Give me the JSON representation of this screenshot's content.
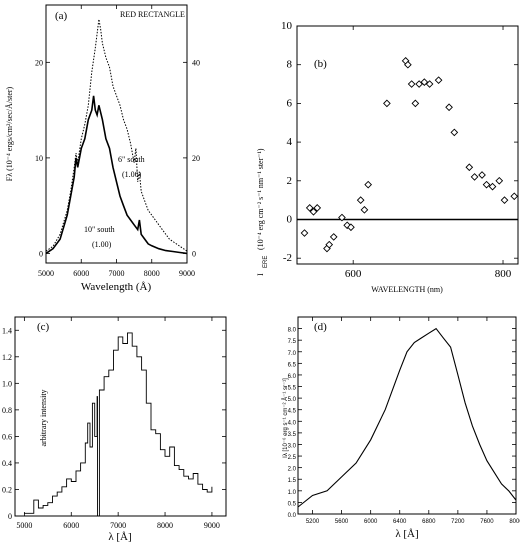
{
  "chart_data": [
    {
      "type": "line",
      "panel_label": "(a)",
      "title": "RED RECTANGLE",
      "xlabel": "Wavelength (Å)",
      "ylabel": "Fλ (10⁻⁴ ergs/cm²/sec/Å/ster)",
      "xlim": [
        5000,
        9000
      ],
      "ylim": [
        -1,
        26
      ],
      "y2lim": [
        -2,
        52
      ],
      "x_ticks": [
        "5000",
        "6000",
        "7000",
        "8000",
        "9000"
      ],
      "y_ticks": [
        "0",
        "10",
        "20"
      ],
      "y2_ticks": [
        "0",
        "20",
        "40"
      ],
      "annotations": [
        "6\" south",
        "(1.06)",
        "10\" south",
        "(1.00)"
      ],
      "series": [
        {
          "axis": "right",
          "style": "dotted",
          "x": [
            5000,
            5200,
            5400,
            5600,
            5700,
            5800,
            5850,
            5900,
            6000,
            6100,
            6200,
            6300,
            6400,
            6450,
            6500,
            6550,
            6600,
            6700,
            6800,
            6900,
            7000,
            7100,
            7200,
            7300,
            7400,
            7500,
            7550,
            7600,
            7650,
            7700,
            7800,
            7900,
            8000,
            8100,
            8200,
            8300,
            8400,
            8500,
            8600,
            8700,
            8800,
            8900,
            9000
          ],
          "y": [
            0.5,
            1.5,
            4,
            9,
            13,
            18,
            21,
            19,
            24,
            27,
            31,
            38,
            43,
            46,
            49,
            47,
            44,
            41,
            39,
            35,
            33,
            31,
            28,
            26,
            23,
            19,
            22,
            15,
            17,
            13,
            11,
            9,
            8,
            7,
            6,
            5,
            4,
            3,
            2.5,
            2,
            1.5,
            1,
            0.5
          ]
        },
        {
          "axis": "left",
          "style": "solid",
          "x": [
            5000,
            5200,
            5400,
            5600,
            5700,
            5800,
            5850,
            5900,
            6000,
            6100,
            6200,
            6300,
            6350,
            6400,
            6450,
            6500,
            6600,
            6700,
            6800,
            6900,
            7000,
            7100,
            7200,
            7300,
            7400,
            7500,
            7600,
            7650,
            7700,
            7800,
            7900,
            8000,
            8200,
            8400,
            8600,
            8800,
            9000
          ],
          "y": [
            0,
            0.5,
            1.5,
            4,
            6,
            8,
            10,
            9,
            11,
            12,
            14,
            15,
            16.5,
            15,
            14.5,
            15.5,
            14,
            12,
            11,
            9,
            7.5,
            6,
            5,
            4,
            3.5,
            3,
            2.5,
            3.5,
            2,
            1.5,
            1,
            0.8,
            0.5,
            0.3,
            0.2,
            0.1,
            0
          ]
        }
      ]
    },
    {
      "type": "scatter",
      "panel_label": "(b)",
      "xlabel": "WAVELENGTH (nm)",
      "ylabel": "I_ERE (10⁻⁴ erg cm⁻² s⁻¹ nm⁻¹ ster⁻¹)",
      "ylabel_parts": {
        "main": "I",
        "sub": "ERE",
        "units": "(10⁻⁴ erg cm⁻² s⁻¹ nm⁻¹ ster⁻¹)"
      },
      "xlim": [
        525,
        820
      ],
      "ylim": [
        -2.3,
        10
      ],
      "x_ticks": [
        "600",
        "800"
      ],
      "x_tick_values": [
        600,
        800
      ],
      "y_ticks": [
        "-2",
        "0",
        "2",
        "4",
        "6",
        "8",
        "10"
      ],
      "y_tick_values": [
        -2,
        0,
        2,
        4,
        6,
        8,
        10
      ],
      "zero_line": true,
      "x": [
        535,
        542,
        547,
        552,
        565,
        568,
        574,
        585,
        592,
        597,
        610,
        615,
        620,
        645,
        670,
        673,
        678,
        683,
        688,
        695,
        702,
        714,
        728,
        735,
        755,
        762,
        772,
        778,
        786,
        795,
        802,
        815
      ],
      "y": [
        -0.7,
        0.6,
        0.4,
        0.6,
        -1.5,
        -1.3,
        -0.9,
        0.1,
        -0.3,
        -0.4,
        1.0,
        0.5,
        1.8,
        6.0,
        8.2,
        8.0,
        7.0,
        6.0,
        7.0,
        7.1,
        7.0,
        7.2,
        5.8,
        4.5,
        2.7,
        2.2,
        2.3,
        1.8,
        1.7,
        2.0,
        1.0,
        1.2
      ]
    },
    {
      "type": "line",
      "panel_label": "(c)",
      "xlabel": "λ [Å]",
      "ylabel": "arbitrary intensity",
      "xlim": [
        4800,
        9300
      ],
      "ylim": [
        0,
        1.5
      ],
      "x_ticks": [
        "5000",
        "6000",
        "7000",
        "8000",
        "9000"
      ],
      "y_ticks": [
        "0",
        "0.2",
        "0.4",
        "0.6",
        "0.8",
        "1.0",
        "1.2",
        "1.4"
      ],
      "x": [
        5000,
        5200,
        5300,
        5400,
        5500,
        5600,
        5700,
        5800,
        5900,
        6000,
        6100,
        6200,
        6300,
        6350,
        6400,
        6450,
        6500,
        6550,
        6560,
        6600,
        6700,
        6800,
        6900,
        7000,
        7100,
        7200,
        7300,
        7400,
        7500,
        7600,
        7700,
        7800,
        7900,
        8000,
        8100,
        8200,
        8300,
        8400,
        8500,
        8600,
        8700,
        8800,
        8900,
        9000
      ],
      "y": [
        0.02,
        0.12,
        0.06,
        0.08,
        0.1,
        0.15,
        0.18,
        0.22,
        0.28,
        0.26,
        0.34,
        0.4,
        0.55,
        0.7,
        0.52,
        0.85,
        0.6,
        0.9,
        0.0,
        0.95,
        1.05,
        1.1,
        1.25,
        1.35,
        1.3,
        1.38,
        1.28,
        1.2,
        1.1,
        0.85,
        0.65,
        0.62,
        0.5,
        0.45,
        0.52,
        0.38,
        0.35,
        0.3,
        0.28,
        0.32,
        0.24,
        0.2,
        0.18,
        0.22
      ]
    },
    {
      "type": "line",
      "panel_label": "(d)",
      "xlabel": "λ [Å]",
      "ylabel": "Iλ [10⁻⁶ erg s⁻¹ cm⁻² Å⁻¹ sr⁻¹]",
      "xlim": [
        5000,
        8000
      ],
      "ylim": [
        0,
        8.5
      ],
      "x_ticks": [
        "5200",
        "5600",
        "6000",
        "6400",
        "6800",
        "7200",
        "7600",
        "8000"
      ],
      "y_ticks": [
        "0.0",
        "0.5",
        "1.0",
        "1.5",
        "2.0",
        "2.5",
        "3.0",
        "3.5",
        "4.0",
        "4.5",
        "5.0",
        "5.5",
        "6.0",
        "6.5",
        "7.0",
        "7.5",
        "8.0"
      ],
      "x": [
        5000,
        5200,
        5400,
        5600,
        5800,
        6000,
        6200,
        6400,
        6500,
        6600,
        6700,
        6800,
        6900,
        7000,
        7100,
        7200,
        7300,
        7400,
        7500,
        7600,
        7700,
        7800,
        7900,
        8000
      ],
      "y": [
        0.3,
        0.8,
        1.0,
        1.6,
        2.2,
        3.2,
        4.5,
        6.2,
        7.0,
        7.4,
        7.6,
        7.8,
        8.0,
        7.6,
        7.2,
        6.0,
        4.8,
        3.8,
        3.0,
        2.3,
        1.8,
        1.3,
        1.0,
        0.6
      ]
    }
  ]
}
